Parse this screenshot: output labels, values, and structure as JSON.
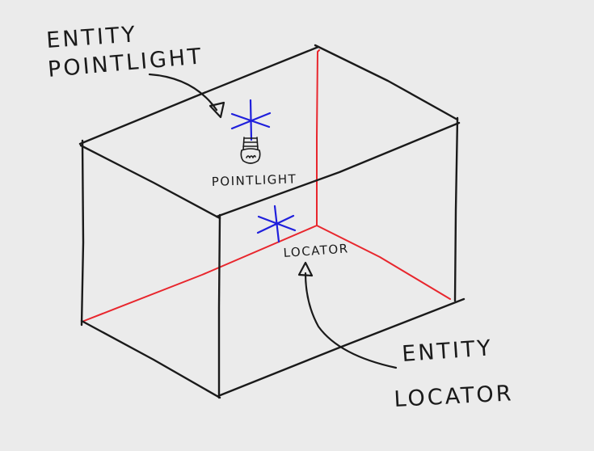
{
  "callouts": {
    "pointlight": {
      "line1": "ENTITY",
      "line2": "POINTLIGHT"
    },
    "locator": {
      "line1": "ENTITY",
      "line2": "LOCATOR"
    }
  },
  "tags": {
    "pointlight": "POINTLIGHT",
    "locator": "LOCATOR"
  },
  "icons": {
    "pointlight_marker": "asterisk-icon",
    "pointlight_bulb": "lightbulb-icon",
    "locator_marker": "asterisk-icon"
  },
  "colors": {
    "background": "#ebebeb",
    "ink": "#1a1a1a",
    "axis": "#e8262d",
    "marker": "#1f1fdc"
  }
}
